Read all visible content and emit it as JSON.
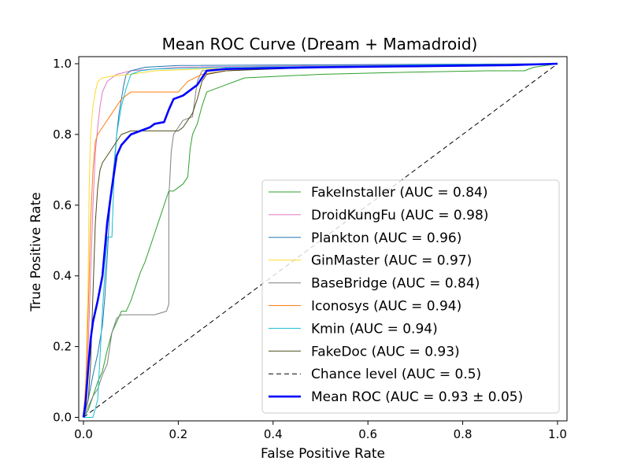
{
  "chart_data": {
    "type": "line",
    "title": "Mean ROC Curve (Dream + Mamadroid)",
    "xlabel": "False Positive Rate",
    "ylabel": "True Positive Rate",
    "xlim": [
      -0.01,
      1.02
    ],
    "ylim": [
      -0.01,
      1.02
    ],
    "grid": false,
    "legend_position": "lower-right",
    "x_ticks": [
      0.0,
      0.2,
      0.4,
      0.6,
      0.8,
      1.0
    ],
    "y_ticks": [
      0.0,
      0.2,
      0.4,
      0.6,
      0.8,
      1.0
    ],
    "x_tick_labels": [
      "0.0",
      "0.2",
      "0.4",
      "0.6",
      "0.8",
      "1.0"
    ],
    "y_tick_labels": [
      "0.0",
      "0.2",
      "0.4",
      "0.6",
      "0.8",
      "1.0"
    ],
    "series": [
      {
        "name": "FakeInstaller (AUC = 0.84)",
        "color": "#2ca02c",
        "style": "solid",
        "points": [
          [
            0,
            0
          ],
          [
            0.01,
            0.02
          ],
          [
            0.02,
            0.06
          ],
          [
            0.03,
            0.1
          ],
          [
            0.04,
            0.13
          ],
          [
            0.05,
            0.19
          ],
          [
            0.06,
            0.24
          ],
          [
            0.07,
            0.27
          ],
          [
            0.08,
            0.3
          ],
          [
            0.09,
            0.3
          ],
          [
            0.1,
            0.33
          ],
          [
            0.11,
            0.37
          ],
          [
            0.12,
            0.41
          ],
          [
            0.13,
            0.44
          ],
          [
            0.14,
            0.48
          ],
          [
            0.15,
            0.52
          ],
          [
            0.16,
            0.56
          ],
          [
            0.17,
            0.6
          ],
          [
            0.18,
            0.64
          ],
          [
            0.19,
            0.64
          ],
          [
            0.2,
            0.65
          ],
          [
            0.21,
            0.66
          ],
          [
            0.22,
            0.68
          ],
          [
            0.225,
            0.76
          ],
          [
            0.23,
            0.8
          ],
          [
            0.24,
            0.83
          ],
          [
            0.25,
            0.88
          ],
          [
            0.26,
            0.92
          ],
          [
            0.28,
            0.93
          ],
          [
            0.3,
            0.94
          ],
          [
            0.34,
            0.96
          ],
          [
            0.5,
            0.97
          ],
          [
            0.65,
            0.975
          ],
          [
            0.85,
            0.98
          ],
          [
            0.93,
            0.98
          ],
          [
            0.95,
            0.99
          ],
          [
            1.0,
            1.0
          ]
        ]
      },
      {
        "name": "DroidKungFu (AUC = 0.98)",
        "color": "#e377c2",
        "style": "solid",
        "points": [
          [
            0,
            0
          ],
          [
            0.005,
            0.05
          ],
          [
            0.01,
            0.2
          ],
          [
            0.015,
            0.4
          ],
          [
            0.02,
            0.6
          ],
          [
            0.025,
            0.75
          ],
          [
            0.03,
            0.82
          ],
          [
            0.035,
            0.88
          ],
          [
            0.04,
            0.92
          ],
          [
            0.05,
            0.95
          ],
          [
            0.06,
            0.96
          ],
          [
            0.07,
            0.97
          ],
          [
            0.1,
            0.98
          ],
          [
            0.15,
            0.985
          ],
          [
            0.2,
            0.99
          ],
          [
            0.5,
            0.995
          ],
          [
            1.0,
            1.0
          ]
        ]
      },
      {
        "name": "Plankton (AUC = 0.96)",
        "color": "#1f77b4",
        "style": "solid",
        "points": [
          [
            0,
            0
          ],
          [
            0.01,
            0.05
          ],
          [
            0.02,
            0.12
          ],
          [
            0.03,
            0.18
          ],
          [
            0.04,
            0.26
          ],
          [
            0.045,
            0.34
          ],
          [
            0.05,
            0.45
          ],
          [
            0.055,
            0.58
          ],
          [
            0.06,
            0.66
          ],
          [
            0.065,
            0.72
          ],
          [
            0.07,
            0.8
          ],
          [
            0.075,
            0.86
          ],
          [
            0.08,
            0.9
          ],
          [
            0.085,
            0.94
          ],
          [
            0.09,
            0.97
          ],
          [
            0.1,
            0.98
          ],
          [
            0.13,
            0.99
          ],
          [
            0.2,
            0.995
          ],
          [
            1.0,
            1.0
          ]
        ]
      },
      {
        "name": "GinMaster (AUC = 0.97)",
        "color": "#ffd92f",
        "style": "solid",
        "points": [
          [
            0,
            0
          ],
          [
            0.005,
            0.1
          ],
          [
            0.01,
            0.4
          ],
          [
            0.012,
            0.65
          ],
          [
            0.015,
            0.8
          ],
          [
            0.02,
            0.88
          ],
          [
            0.025,
            0.92
          ],
          [
            0.03,
            0.95
          ],
          [
            0.04,
            0.96
          ],
          [
            0.06,
            0.965
          ],
          [
            0.1,
            0.97
          ],
          [
            0.15,
            0.98
          ],
          [
            0.25,
            0.985
          ],
          [
            0.4,
            0.99
          ],
          [
            1.0,
            1.0
          ]
        ]
      },
      {
        "name": "BaseBridge (AUC = 0.84)",
        "color": "#7f7f7f",
        "style": "solid",
        "points": [
          [
            0,
            0
          ],
          [
            0.01,
            0.03
          ],
          [
            0.02,
            0.06
          ],
          [
            0.03,
            0.08
          ],
          [
            0.04,
            0.12
          ],
          [
            0.05,
            0.15
          ],
          [
            0.06,
            0.24
          ],
          [
            0.07,
            0.28
          ],
          [
            0.08,
            0.29
          ],
          [
            0.1,
            0.29
          ],
          [
            0.15,
            0.29
          ],
          [
            0.175,
            0.3
          ],
          [
            0.18,
            0.32
          ],
          [
            0.18,
            0.62
          ],
          [
            0.185,
            0.75
          ],
          [
            0.19,
            0.8
          ],
          [
            0.2,
            0.82
          ],
          [
            0.21,
            0.84
          ],
          [
            0.23,
            0.85
          ],
          [
            0.235,
            0.9
          ],
          [
            0.24,
            0.95
          ],
          [
            0.25,
            0.98
          ],
          [
            0.3,
            0.985
          ],
          [
            0.4,
            0.99
          ],
          [
            1.0,
            1.0
          ]
        ]
      },
      {
        "name": "Iconosys (AUC = 0.94)",
        "color": "#ff7f0e",
        "style": "solid",
        "points": [
          [
            0,
            0
          ],
          [
            0.005,
            0.1
          ],
          [
            0.01,
            0.3
          ],
          [
            0.015,
            0.55
          ],
          [
            0.02,
            0.7
          ],
          [
            0.025,
            0.78
          ],
          [
            0.03,
            0.8
          ],
          [
            0.04,
            0.82
          ],
          [
            0.05,
            0.84
          ],
          [
            0.06,
            0.86
          ],
          [
            0.07,
            0.88
          ],
          [
            0.08,
            0.9
          ],
          [
            0.09,
            0.91
          ],
          [
            0.1,
            0.92
          ],
          [
            0.15,
            0.92
          ],
          [
            0.2,
            0.92
          ],
          [
            0.22,
            0.95
          ],
          [
            0.25,
            0.97
          ],
          [
            0.3,
            0.98
          ],
          [
            0.45,
            0.99
          ],
          [
            1.0,
            1.0
          ]
        ]
      },
      {
        "name": "Kmin (AUC = 0.94)",
        "color": "#17becf",
        "style": "solid",
        "points": [
          [
            0,
            0
          ],
          [
            0.02,
            0
          ],
          [
            0.03,
            0.05
          ],
          [
            0.04,
            0.3
          ],
          [
            0.05,
            0.51
          ],
          [
            0.06,
            0.51
          ],
          [
            0.065,
            0.7
          ],
          [
            0.07,
            0.8
          ],
          [
            0.08,
            0.88
          ],
          [
            0.09,
            0.93
          ],
          [
            0.1,
            0.97
          ],
          [
            0.12,
            0.98
          ],
          [
            0.15,
            0.985
          ],
          [
            0.3,
            0.99
          ],
          [
            1.0,
            1.0
          ]
        ]
      },
      {
        "name": "FakeDoc (AUC = 0.93)",
        "color": "#4d4d1a",
        "style": "solid",
        "points": [
          [
            0,
            0
          ],
          [
            0.01,
            0.05
          ],
          [
            0.015,
            0.15
          ],
          [
            0.02,
            0.35
          ],
          [
            0.025,
            0.55
          ],
          [
            0.03,
            0.65
          ],
          [
            0.035,
            0.7
          ],
          [
            0.04,
            0.72
          ],
          [
            0.05,
            0.74
          ],
          [
            0.06,
            0.76
          ],
          [
            0.07,
            0.78
          ],
          [
            0.08,
            0.8
          ],
          [
            0.1,
            0.81
          ],
          [
            0.15,
            0.81
          ],
          [
            0.2,
            0.81
          ],
          [
            0.21,
            0.82
          ],
          [
            0.22,
            0.84
          ],
          [
            0.23,
            0.86
          ],
          [
            0.24,
            0.9
          ],
          [
            0.25,
            0.95
          ],
          [
            0.26,
            0.97
          ],
          [
            0.3,
            0.98
          ],
          [
            0.5,
            0.99
          ],
          [
            1.0,
            1.0
          ]
        ]
      },
      {
        "name": "Chance level (AUC = 0.5)",
        "color": "#000000",
        "style": "dashed",
        "points": [
          [
            0,
            0
          ],
          [
            1,
            1
          ]
        ]
      },
      {
        "name": "Mean ROC (AUC = 0.93 ± 0.05)",
        "color": "#0000ff",
        "legend_text_color": "#c00000",
        "style": "solid",
        "width": "bold",
        "points": [
          [
            0,
            0
          ],
          [
            0.005,
            0.05
          ],
          [
            0.01,
            0.14
          ],
          [
            0.015,
            0.22
          ],
          [
            0.02,
            0.27
          ],
          [
            0.03,
            0.33
          ],
          [
            0.04,
            0.4
          ],
          [
            0.05,
            0.55
          ],
          [
            0.06,
            0.65
          ],
          [
            0.07,
            0.74
          ],
          [
            0.08,
            0.77
          ],
          [
            0.1,
            0.8
          ],
          [
            0.12,
            0.81
          ],
          [
            0.14,
            0.82
          ],
          [
            0.15,
            0.83
          ],
          [
            0.17,
            0.835
          ],
          [
            0.18,
            0.87
          ],
          [
            0.19,
            0.9
          ],
          [
            0.21,
            0.91
          ],
          [
            0.22,
            0.92
          ],
          [
            0.23,
            0.93
          ],
          [
            0.24,
            0.94
          ],
          [
            0.25,
            0.96
          ],
          [
            0.26,
            0.98
          ],
          [
            0.3,
            0.985
          ],
          [
            0.5,
            0.99
          ],
          [
            0.7,
            0.993
          ],
          [
            0.9,
            0.996
          ],
          [
            1.0,
            1.0
          ]
        ]
      }
    ]
  }
}
